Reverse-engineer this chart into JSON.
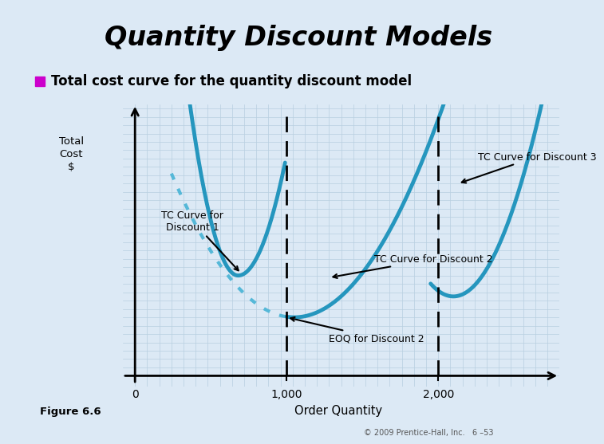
{
  "title": "Quantity Discount Models",
  "title_bg_color": "#6ab8d4",
  "title_bg_outer": "#dce9f5",
  "bullet_color": "#cc00cc",
  "subtitle": "Total cost curve for the quantity discount model",
  "bg_color": "#dce9f5",
  "grid_color": "#b8cfe0",
  "curve_color": "#2596be",
  "dotted_color": "#55b8d8",
  "ylabel": "Total\nCost\n$",
  "xlabel": "Order Quantity",
  "x_tick_labels": [
    "0",
    "1,000",
    "2,000"
  ],
  "figure_label": "Figure 6.6",
  "copyright": "© 2009 Prentice-Hall, Inc.   6 –53",
  "label_d1": "TC Curve for\nDiscount 1",
  "label_d2": "TC Curve for Discount 2",
  "label_d3": "TC Curve for Discount 3",
  "label_eoq": "EOQ for Discount 2"
}
